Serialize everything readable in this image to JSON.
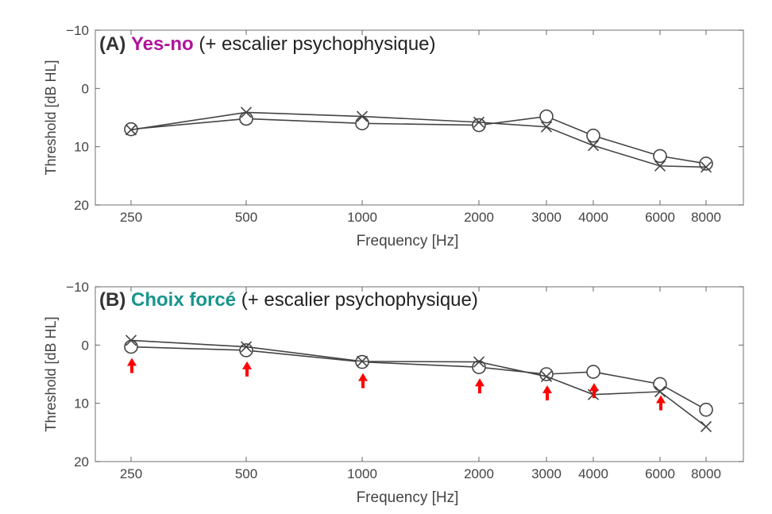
{
  "colors": {
    "method_a": "#b0139b",
    "method_b": "#17958c",
    "arrow": "#ff0000",
    "line": "#444444",
    "axis": "#444444"
  },
  "chart_data": [
    {
      "type": "line",
      "panel_tag": "(A)",
      "method": "Yes-no",
      "subtitle": "(+ escalier psychophysique)",
      "xlabel": "Frequency [Hz]",
      "ylabel": "Threshold [dB HL]",
      "x_scale": "log",
      "y_inverted": true,
      "ylim": [
        -10,
        20
      ],
      "yticks": [
        -10,
        0,
        10,
        20
      ],
      "ytick_labels": [
        "−10",
        "0",
        "10",
        "20"
      ],
      "categories": [
        "250",
        "500",
        "1000",
        "2000",
        "3000",
        "4000",
        "6000",
        "8000"
      ],
      "x": [
        250,
        500,
        1000,
        2000,
        3000,
        4000,
        6000,
        8000
      ],
      "grid": false,
      "series": [
        {
          "marker": "circle",
          "values": [
            7,
            5.2,
            6,
            6.3,
            4.8,
            8.1,
            11.6,
            12.9
          ]
        },
        {
          "marker": "x",
          "values": [
            7.1,
            4.1,
            4.8,
            5.8,
            6.6,
            9.8,
            13.3,
            13.5
          ]
        }
      ],
      "arrows": []
    },
    {
      "type": "line",
      "panel_tag": "(B)",
      "method": "Choix forcé",
      "subtitle": "(+ escalier psychophysique)",
      "xlabel": "Frequency [Hz]",
      "ylabel": "Threshold [dB HL]",
      "x_scale": "log",
      "y_inverted": true,
      "ylim": [
        -10,
        20
      ],
      "yticks": [
        -10,
        0,
        10,
        20
      ],
      "ytick_labels": [
        "−10",
        "0",
        "10",
        "20"
      ],
      "categories": [
        "250",
        "500",
        "1000",
        "2000",
        "3000",
        "4000",
        "6000",
        "8000"
      ],
      "x": [
        250,
        500,
        1000,
        2000,
        3000,
        4000,
        6000,
        8000
      ],
      "grid": false,
      "series": [
        {
          "marker": "circle",
          "values": [
            0.3,
            0.9,
            2.9,
            3.8,
            5,
            4.6,
            6.7,
            11.1
          ]
        },
        {
          "marker": "x",
          "values": [
            -0.8,
            0.3,
            2.8,
            2.9,
            5.4,
            8.5,
            8,
            14
          ]
        }
      ],
      "arrows": [
        250,
        500,
        1000,
        2000,
        3000,
        4000,
        6000
      ]
    }
  ]
}
